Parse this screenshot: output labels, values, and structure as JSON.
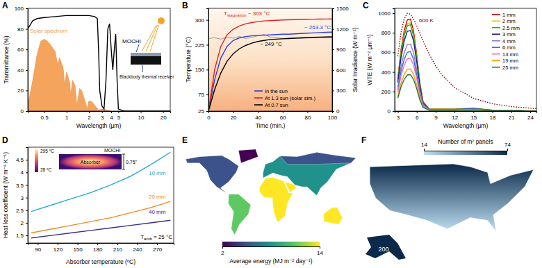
{
  "chart_data": [
    {
      "type": "line",
      "title": "A",
      "x_label": "Wavelength (µm)",
      "y_label": "Transmittance (%)",
      "log": "x",
      "xlim": [
        0.3,
        25
      ],
      "xticks": [
        0.5,
        1,
        2,
        3,
        4,
        5,
        10,
        20
      ],
      "ylim": [
        0,
        100
      ],
      "yticks": [
        0,
        20,
        40,
        60,
        80,
        100
      ],
      "series": [
        {
          "name": "Solar spectrum",
          "type": "area",
          "color": "#f39a4b",
          "x": [
            0.3,
            0.35,
            0.4,
            0.45,
            0.5,
            0.55,
            0.6,
            0.7,
            0.76,
            0.8,
            0.9,
            0.94,
            1,
            1.1,
            1.14,
            1.2,
            1.3,
            1.38,
            1.5,
            1.6,
            1.8,
            1.9,
            2,
            2.2,
            2.5,
            2.7,
            3,
            3.5,
            4
          ],
          "values": [
            5,
            30,
            55,
            68,
            70,
            68,
            65,
            58,
            45,
            52,
            42,
            25,
            38,
            28,
            15,
            30,
            25,
            5,
            22,
            20,
            8,
            2,
            10,
            9,
            4,
            1,
            2,
            1,
            0
          ]
        },
        {
          "color": "#000000",
          "x": [
            0.3,
            0.35,
            0.4,
            0.5,
            0.7,
            1,
            1.5,
            2,
            2.4,
            2.6,
            2.7,
            2.8,
            3,
            3.2,
            3.4,
            3.6,
            3.8,
            4,
            4.2,
            4.4,
            4.6,
            4.8,
            5,
            6,
            10,
            20,
            25
          ],
          "values": [
            80,
            88,
            90,
            91,
            92,
            93,
            93,
            93,
            92,
            90,
            60,
            20,
            5,
            2,
            30,
            80,
            85,
            60,
            40,
            60,
            75,
            30,
            2,
            0,
            0,
            0,
            0
          ]
        }
      ],
      "annotations": [
        {
          "text": "MOCHI"
        },
        {
          "text": "Blackbody thermal receiver"
        }
      ]
    },
    {
      "type": "line",
      "title": "B",
      "x_label": "Time (min.)",
      "y_label": "Temperature (°C)",
      "y2_label": "Solar Irradiance (W m⁻²)",
      "xlim": [
        0,
        100
      ],
      "xticks": [
        0,
        20,
        40,
        60,
        80,
        100
      ],
      "ylim": [
        25,
        335
      ],
      "yticks": [
        25,
        75,
        150,
        225,
        300
      ],
      "y2lim": [
        0,
        1500
      ],
      "y2ticks": [
        0,
        300,
        600,
        900,
        1200,
        1500
      ],
      "legend": "lower right",
      "x": [
        0,
        5,
        10,
        15,
        20,
        25,
        30,
        35,
        40,
        45,
        50,
        55,
        60,
        65,
        70,
        75,
        80,
        85,
        90,
        95,
        100
      ],
      "series": [
        {
          "color": "#9a9a9a",
          "axis": "y2",
          "values": [
            1060,
            1070,
            1050,
            1080,
            1065,
            1090,
            1060,
            1075,
            1100,
            1120,
            1080,
            1070,
            1060,
            1065,
            1070,
            1060,
            1065,
            1070,
            1075,
            1070,
            1070
          ]
        },
        {
          "name": "In the sun",
          "color": "#2b3fd6",
          "values": [
            25,
            120,
            185,
            220,
            238,
            246,
            250,
            252,
            253,
            254,
            255,
            256,
            257,
            257,
            258,
            259,
            260,
            261,
            262,
            262.6,
            263.3
          ]
        },
        {
          "name": "At 1.3 sun (solar sim.)",
          "color": "#e0201b",
          "values": [
            25,
            150,
            220,
            255,
            272,
            282,
            288,
            292,
            295,
            297,
            298,
            299,
            300,
            300.5,
            301,
            301.5,
            302,
            302.3,
            302.6,
            302.8,
            303
          ]
        },
        {
          "name": "At 0.7 sun",
          "color": "#000000",
          "values": [
            25,
            90,
            140,
            175,
            198,
            213,
            223,
            230,
            235,
            238,
            241,
            242,
            243,
            244,
            245,
            246,
            247,
            247.5,
            248,
            248.5,
            249
          ]
        }
      ],
      "annotations": [
        {
          "text": "T",
          "sub": "stagnation",
          "after": " ~ 303 °C"
        },
        {
          "text": "~ 263.3 °C"
        },
        {
          "text": "~ 249 °C"
        }
      ]
    },
    {
      "type": "line",
      "title": "C",
      "x_label": "Wavelength (µm)",
      "y_label": "WTE (W m⁻² µm⁻¹)",
      "xlim": [
        2.5,
        25
      ],
      "xticks": [
        3,
        6,
        9,
        12,
        15,
        18,
        21,
        24
      ],
      "ylim": [
        0,
        1050
      ],
      "yticks": [
        0,
        200,
        400,
        600,
        800,
        1000
      ],
      "legend": "upper right",
      "x": [
        3,
        3.5,
        4,
        4.5,
        5,
        5.5,
        6,
        6.5,
        7,
        8,
        10,
        12,
        15,
        18,
        21,
        24,
        25
      ],
      "series": [
        {
          "name": "1 mm",
          "color": "#c00000",
          "values": [
            336,
            624,
            816,
            931,
            941,
            816,
            576,
            288,
            96,
            19,
            19,
            19,
            29,
            10,
            10,
            0,
            0
          ]
        },
        {
          "name": "2 mm",
          "color": "#e8c000",
          "values": [
            322,
            598,
            782,
            892,
            902,
            782,
            552,
            276,
            92,
            18,
            18,
            18,
            28,
            9,
            9,
            0,
            0
          ]
        },
        {
          "name": "2.5 mm",
          "color": "#33a02c",
          "values": [
            315,
            585,
            765,
            873,
            882,
            765,
            540,
            270,
            90,
            18,
            18,
            18,
            27,
            9,
            9,
            0,
            0
          ]
        },
        {
          "name": "3 mm",
          "color": "#1f1f7a",
          "values": [
            294,
            546,
            714,
            815,
            823,
            714,
            504,
            252,
            84,
            17,
            17,
            17,
            25,
            8,
            8,
            0,
            0
          ]
        },
        {
          "name": "4 mm",
          "color": "#8a7fc4",
          "values": [
            245,
            455,
            595,
            679,
            686,
            595,
            420,
            210,
            70,
            14,
            14,
            14,
            21,
            7,
            7,
            0,
            0
          ]
        },
        {
          "name": "6 mm",
          "color": "#3b6fd8",
          "values": [
            217,
            403,
            527,
            601,
            608,
            527,
            372,
            186,
            62,
            12,
            12,
            12,
            19,
            6,
            6,
            0,
            0
          ]
        },
        {
          "name": "13 mm",
          "color": "#e377c2",
          "values": [
            193,
            358,
            468,
            534,
            539,
            468,
            330,
            165,
            55,
            11,
            11,
            11,
            17,
            6,
            6,
            0,
            0
          ]
        },
        {
          "name": "19 mm",
          "color": "#ff9900",
          "values": [
            154,
            286,
            374,
            427,
            431,
            374,
            264,
            132,
            44,
            9,
            9,
            9,
            13,
            4,
            4,
            0,
            0
          ]
        },
        {
          "name": "25 mm",
          "color": "#1b7a3a",
          "values": [
            133,
            247,
            323,
            369,
            372,
            323,
            228,
            114,
            38,
            8,
            8,
            8,
            11,
            4,
            4,
            0,
            0
          ]
        },
        {
          "color": "#8b0000",
          "line_style": "dotted",
          "x": [
            3,
            3.5,
            4,
            4.5,
            5,
            5.5,
            6,
            7,
            8,
            9,
            10,
            12,
            15,
            18,
            21,
            24,
            25
          ],
          "values": [
            560,
            800,
            940,
            1000,
            990,
            940,
            870,
            720,
            580,
            460,
            370,
            240,
            130,
            75,
            46,
            30,
            26
          ]
        }
      ],
      "annotations": [
        {
          "text": "600 K"
        }
      ]
    },
    {
      "type": "line",
      "title": "D",
      "x_label": "Absorber temperature (ºC)",
      "y_label": "Heat loss coefficient (W m⁻² K⁻¹)",
      "xlim": [
        75,
        295
      ],
      "xticks": [
        90,
        120,
        150,
        180,
        210,
        240,
        270
      ],
      "ylim": [
        1.2,
        5
      ],
      "yticks": [
        1.5,
        2,
        2.5,
        3,
        3.5,
        4,
        4.5
      ],
      "x": [
        80,
        110,
        140,
        170,
        200,
        230,
        260,
        290
      ],
      "series": [
        {
          "name": "10 mm",
          "color": "#29a9d6",
          "values": [
            2.45,
            2.7,
            2.95,
            3.2,
            3.5,
            3.85,
            4.3,
            4.8
          ]
        },
        {
          "name": "20 mm",
          "color": "#f08a24",
          "values": [
            1.6,
            1.75,
            1.9,
            2.05,
            2.2,
            2.4,
            2.6,
            2.85
          ]
        },
        {
          "name": "40 mm",
          "color": "#3b2a8a",
          "values": [
            1.4,
            1.5,
            1.6,
            1.7,
            1.8,
            1.9,
            2.0,
            2.1
          ]
        }
      ],
      "annotations": [
        {
          "text": "T",
          "sub": "amb",
          "after": " = 25 °C"
        },
        {
          "text": "MOCHI"
        },
        {
          "text": "Absorber"
        },
        {
          "text": "0.75\""
        },
        {
          "text": "295 ºC"
        },
        {
          "text": "28 ºC"
        }
      ]
    },
    {
      "type": "map",
      "title": "E",
      "colorbar": {
        "label": "Average energy (MJ m⁻² day⁻¹)",
        "range": [
          2,
          14
        ],
        "ticks": [
          2,
          14
        ],
        "colors": [
          "#440154",
          "#3b528b",
          "#21918c",
          "#5ec962",
          "#fde725"
        ]
      }
    },
    {
      "type": "map",
      "title": "F",
      "colorbar": {
        "label": "Number of m² panels",
        "range": [
          14,
          74
        ],
        "ticks": [
          14,
          74
        ],
        "colors": [
          "#bfe0f4",
          "#0b2a4a"
        ]
      },
      "annotations": [
        {
          "text": "200"
        }
      ]
    }
  ]
}
